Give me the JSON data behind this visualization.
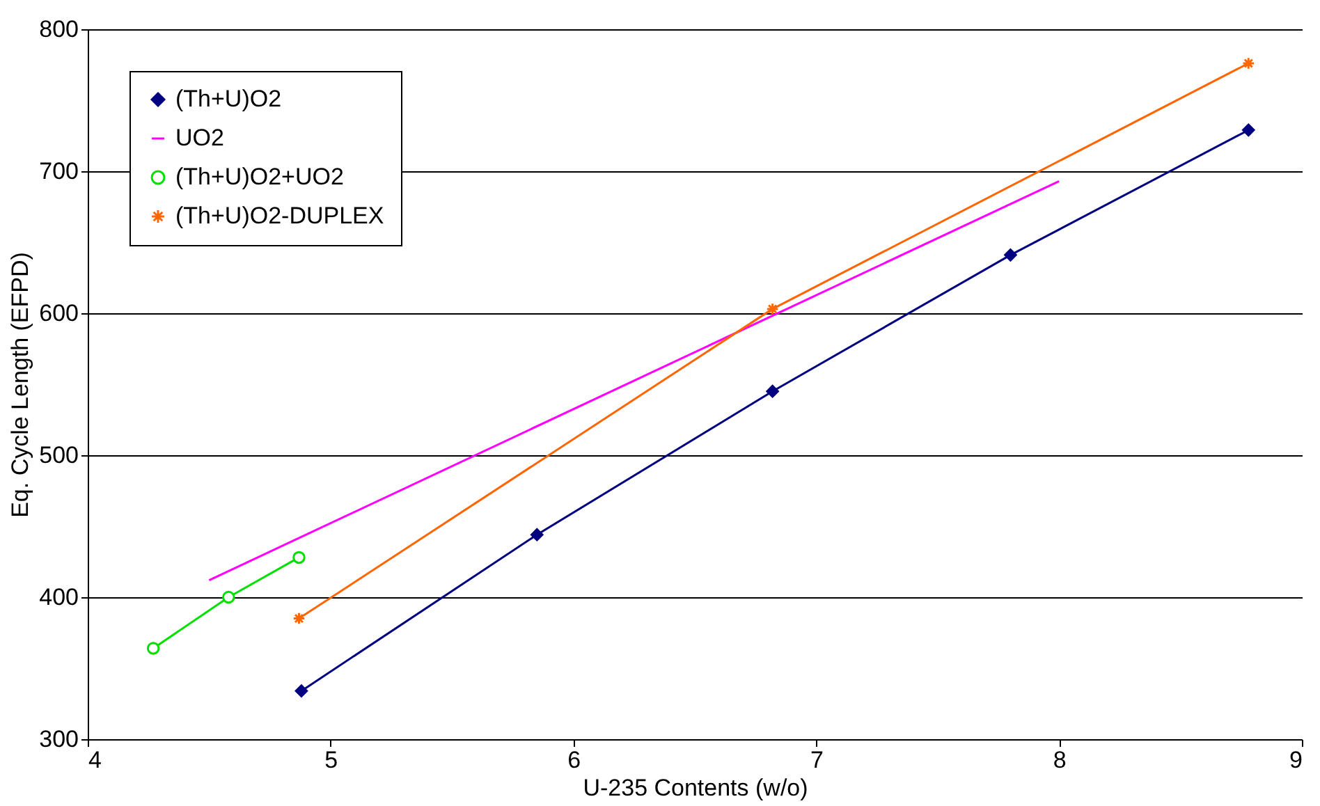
{
  "chart_data": {
    "type": "line",
    "xlabel": "U-235 Contents (w/o)",
    "ylabel": "Eq. Cycle Length (EFPD)",
    "xlim": [
      4,
      9
    ],
    "xticks": [
      4,
      5,
      6,
      7,
      8,
      9
    ],
    "ylim": [
      300,
      800
    ],
    "yticks": [
      300,
      400,
      500,
      600,
      700,
      800
    ],
    "grid": "y",
    "legend": "top left",
    "series": [
      {
        "name": "(Th+U)O2",
        "color": "#000080",
        "marker": "diamond",
        "x": [
          4.88,
          5.85,
          6.82,
          7.8,
          8.78
        ],
        "values": [
          334,
          444,
          545,
          641,
          729
        ]
      },
      {
        "name": "UO2",
        "color": "#ff00ff",
        "marker": "none",
        "x": [
          4.5,
          8.0
        ],
        "values": [
          412,
          693
        ]
      },
      {
        "name": "(Th+U)O2+UO2",
        "color": "#00e000",
        "marker": "circle",
        "x": [
          4.27,
          4.58,
          4.87
        ],
        "values": [
          364,
          400,
          428
        ]
      },
      {
        "name": "(Th+U)O2-DUPLEX",
        "color": "#ff6600",
        "marker": "cross",
        "x": [
          4.87,
          6.82,
          8.78
        ],
        "values": [
          385,
          603,
          776
        ]
      }
    ]
  }
}
